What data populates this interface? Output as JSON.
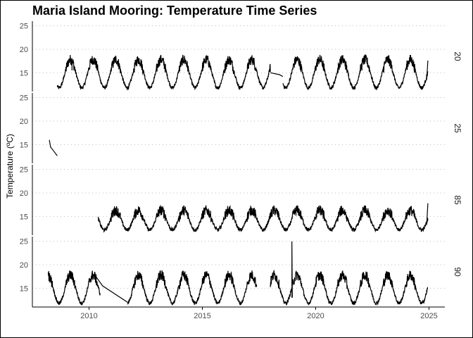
{
  "chart_data": {
    "type": "line",
    "title": "Maria Island Mooring: Temperature Time Series",
    "ylabel": "Temperature (ºC)",
    "xlabel": "",
    "xlim": [
      2007.5,
      2025.7
    ],
    "ylim": [
      11,
      26
    ],
    "x_ticks": [
      2010,
      2015,
      2020,
      2025
    ],
    "y_ticks": [
      15,
      20,
      25
    ],
    "grid": "dotted horizontal",
    "line_color": "#000000",
    "panels": [
      {
        "label": "20",
        "segments": [
          {
            "start": 2008.6,
            "end": 2009.25,
            "phase": 2008.0
          },
          {
            "start": 2009.25,
            "end": 2018.0,
            "phase": 2008.0
          },
          {
            "start": 2018.55,
            "end": 2024.95,
            "phase": 2008.0
          }
        ],
        "connectors": [
          {
            "x": [
              2009.25,
              2009.25
            ],
            "y": [
              17.5,
              15.5
            ]
          },
          {
            "x": [
              2018.0,
              2018.4,
              2018.55
            ],
            "y": [
              15.0,
              14.6,
              14.2
            ]
          },
          {
            "x": [
              2024.9,
              2024.95
            ],
            "y": [
              13.5,
              17.6
            ]
          }
        ]
      },
      {
        "label": "25",
        "segments": [],
        "connectors": [
          {
            "x": [
              2008.25,
              2008.3,
              2008.35
            ],
            "y": [
              16.0,
              14.5,
              14.2
            ]
          },
          {
            "x": [
              2008.35,
              2008.6
            ],
            "y": [
              14.2,
              12.6
            ]
          }
        ]
      },
      {
        "label": "85",
        "segments": [
          {
            "start": 2010.4,
            "end": 2024.95,
            "phase": 2008.0
          }
        ],
        "connectors": [
          {
            "x": [
              2024.9,
              2024.95
            ],
            "y": [
              13.2,
              17.8
            ]
          }
        ]
      },
      {
        "label": "90",
        "segments": [
          {
            "start": 2008.2,
            "end": 2010.5,
            "phase": 2008.0
          },
          {
            "start": 2011.7,
            "end": 2017.4,
            "phase": 2008.0
          },
          {
            "start": 2018.0,
            "end": 2024.95,
            "phase": 2008.0
          }
        ],
        "connectors": [
          {
            "x": [
              2010.3,
              2010.6,
              2011.7
            ],
            "y": [
              17.5,
              15.5,
              12.0
            ]
          },
          {
            "x": [
              2018.95,
              2018.95,
              2018.97
            ],
            "y": [
              13.0,
              25.0,
              13.0
            ]
          }
        ]
      }
    ]
  }
}
